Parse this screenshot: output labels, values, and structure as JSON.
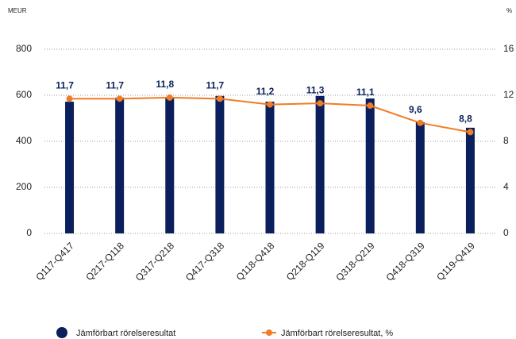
{
  "chart_data": {
    "type": "bar-line",
    "y_label": "MEUR",
    "y2_label": "%",
    "categories": [
      "Q117-Q417",
      "Q217-Q118",
      "Q317-Q218",
      "Q417-Q318",
      "Q118-Q418",
      "Q218-Q119",
      "Q318-Q219",
      "Q418-Q319",
      "Q119-Q419"
    ],
    "series": [
      {
        "name": "Jämförbart rörelseresultat",
        "type": "bar",
        "color": "#0a1f5c",
        "values": [
          572,
          590,
          593,
          597,
          572,
          597,
          586,
          483,
          459
        ]
      },
      {
        "name": "Jämförbart rörelseresultat, %",
        "type": "line",
        "axis": "y2",
        "color": "#f07c28",
        "values": [
          11.7,
          11.7,
          11.8,
          11.7,
          11.2,
          11.3,
          11.1,
          9.6,
          8.8
        ],
        "value_labels": [
          "11,7",
          "11,7",
          "11,8",
          "11,7",
          "11,2",
          "11,3",
          "11,1",
          "9,6",
          "8,8"
        ]
      }
    ],
    "ylim": [
      0,
      800
    ],
    "yticks": [
      0,
      200,
      400,
      600,
      800
    ],
    "y2lim": [
      0,
      16
    ],
    "y2ticks": [
      0,
      4,
      8,
      12,
      16
    ],
    "grid": true,
    "legend": "bottom"
  }
}
